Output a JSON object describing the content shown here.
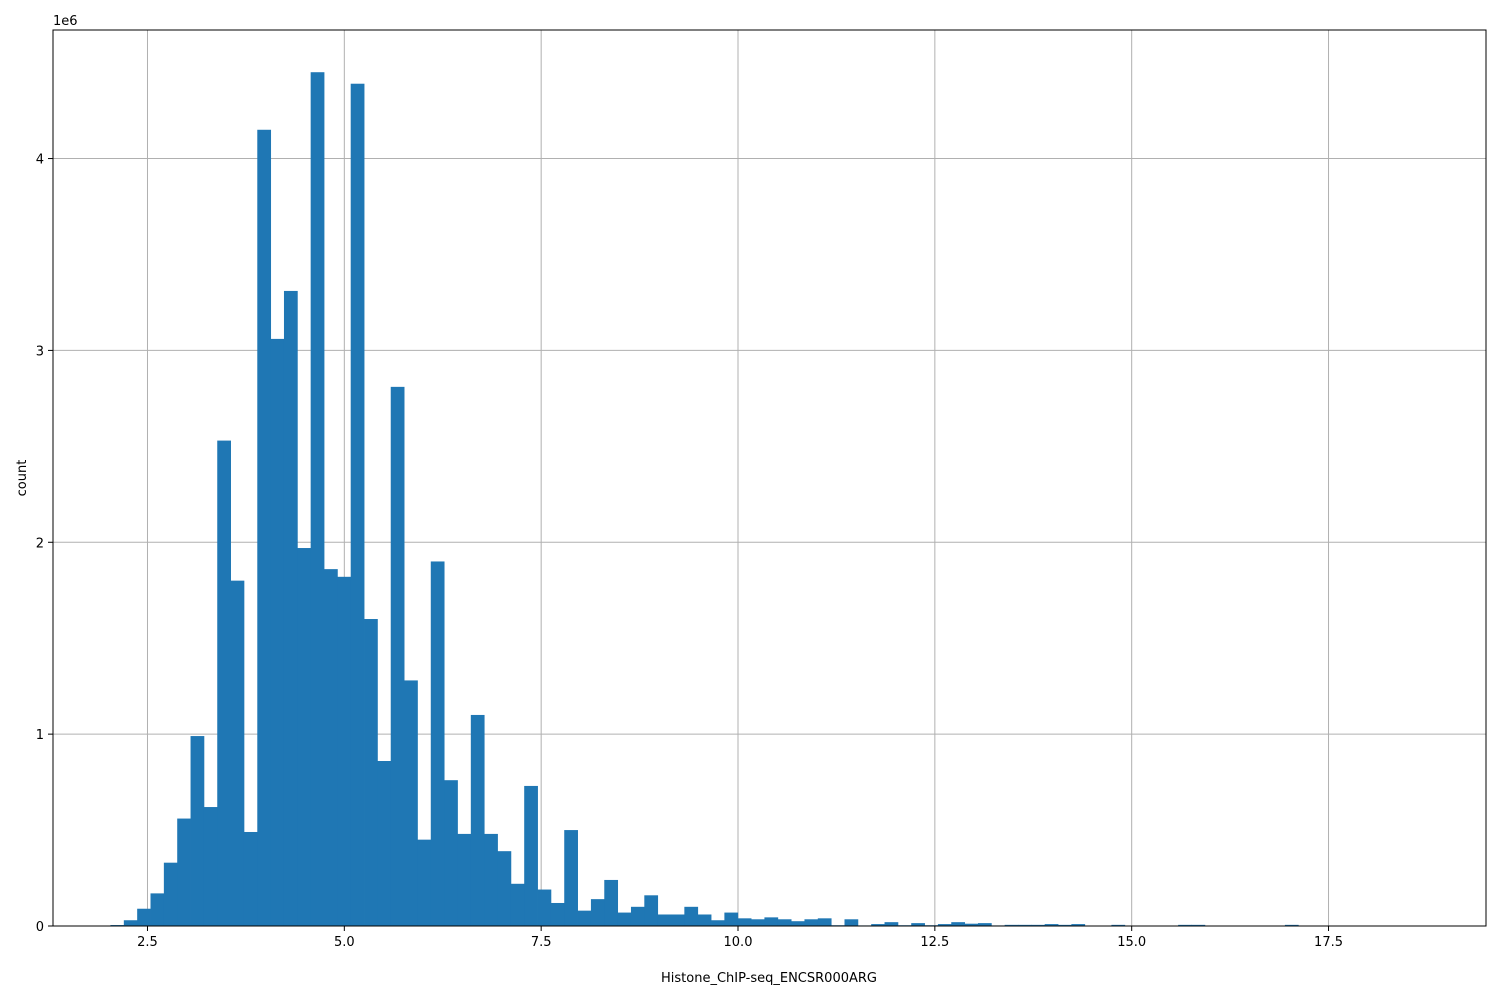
{
  "chart_data": {
    "type": "bar",
    "title": "",
    "xlabel": "Histone_ChIP-seq_ENCSR000ARG",
    "ylabel": "count",
    "y_offset_label": "1e6",
    "xlim": [
      1.3,
      19.5
    ],
    "ylim": [
      0,
      4.67
    ],
    "x_ticks": [
      2.5,
      5.0,
      7.5,
      10.0,
      12.5,
      15.0,
      17.5
    ],
    "x_tick_labels": [
      "2.5",
      "5.0",
      "7.5",
      "10.0",
      "12.5",
      "15.0",
      "17.5"
    ],
    "y_ticks": [
      0,
      1,
      2,
      3,
      4
    ],
    "y_tick_labels": [
      "0",
      "1",
      "2",
      "3",
      "4"
    ],
    "grid": true,
    "bar_color": "#1f77b4",
    "bin_start": 2.03,
    "bin_width": 0.1695,
    "values": [
      0.005,
      0.03,
      0.09,
      0.17,
      0.33,
      0.56,
      0.99,
      0.62,
      2.53,
      1.8,
      0.49,
      4.15,
      3.06,
      3.31,
      1.97,
      4.45,
      1.86,
      1.82,
      4.39,
      1.6,
      0.86,
      2.81,
      1.28,
      0.45,
      1.9,
      0.76,
      0.48,
      1.1,
      0.48,
      0.39,
      0.22,
      0.73,
      0.19,
      0.12,
      0.5,
      0.08,
      0.14,
      0.24,
      0.07,
      0.1,
      0.16,
      0.06,
      0.06,
      0.1,
      0.06,
      0.03,
      0.07,
      0.04,
      0.035,
      0.045,
      0.035,
      0.025,
      0.035,
      0.04,
      0.004,
      0.035,
      0.003,
      0.01,
      0.02,
      0.004,
      0.015,
      0.004,
      0.01,
      0.02,
      0.012,
      0.015,
      0.003,
      0.006,
      0.006,
      0.006,
      0.01,
      0.006,
      0.01,
      0.002,
      0.002,
      0.006,
      0.002,
      0.002,
      0.002,
      0.002,
      0.006,
      0.006,
      0.002,
      0.002,
      0.002,
      0.002,
      0.002,
      0.002,
      0.006,
      0.002
    ]
  }
}
